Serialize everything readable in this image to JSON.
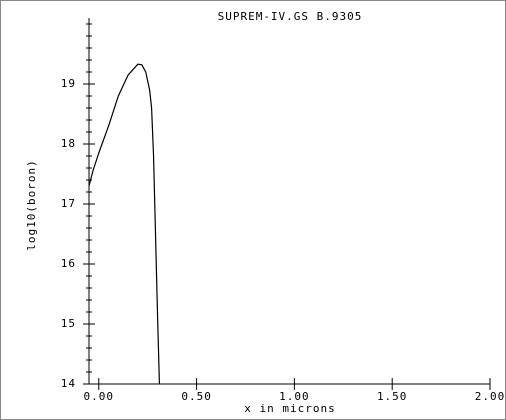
{
  "chart_data": {
    "type": "line",
    "title": "SUPREM-IV.GS B.9305",
    "x_label": "x in microns",
    "y_label": "log10(boron)",
    "series": [
      {
        "name": "boron",
        "color": "#000000",
        "x": [
          -0.05,
          -0.03,
          0.0,
          0.05,
          0.1,
          0.15,
          0.2,
          0.22,
          0.24,
          0.26,
          0.27,
          0.28,
          0.29,
          0.3,
          0.31
        ],
        "values": [
          17.3,
          17.55,
          17.85,
          18.3,
          18.8,
          19.15,
          19.33,
          19.32,
          19.2,
          18.9,
          18.6,
          17.8,
          16.5,
          15.2,
          14.0
        ]
      }
    ],
    "xlim": [
      -0.05,
      2.0
    ],
    "xticks": [
      {
        "value": 0,
        "label": "0.00"
      },
      {
        "value": 0.5,
        "label": "0.50"
      },
      {
        "value": 1,
        "label": "1.00"
      },
      {
        "value": 1.5,
        "label": "1.50"
      },
      {
        "value": 2,
        "label": "2.00"
      }
    ],
    "ylim": [
      14,
      20
    ],
    "yticks": [
      14,
      15,
      16,
      17,
      18,
      19
    ],
    "y_minor_ticks": [
      14.2,
      14.4,
      14.6,
      14.8,
      15.2,
      15.4,
      15.6,
      15.8,
      16.2,
      16.4,
      16.6,
      16.8,
      17.2,
      17.4,
      17.6,
      17.8,
      18.2,
      18.4,
      18.6,
      18.8,
      19.2,
      19.4,
      19.6,
      19.8,
      20
    ]
  }
}
